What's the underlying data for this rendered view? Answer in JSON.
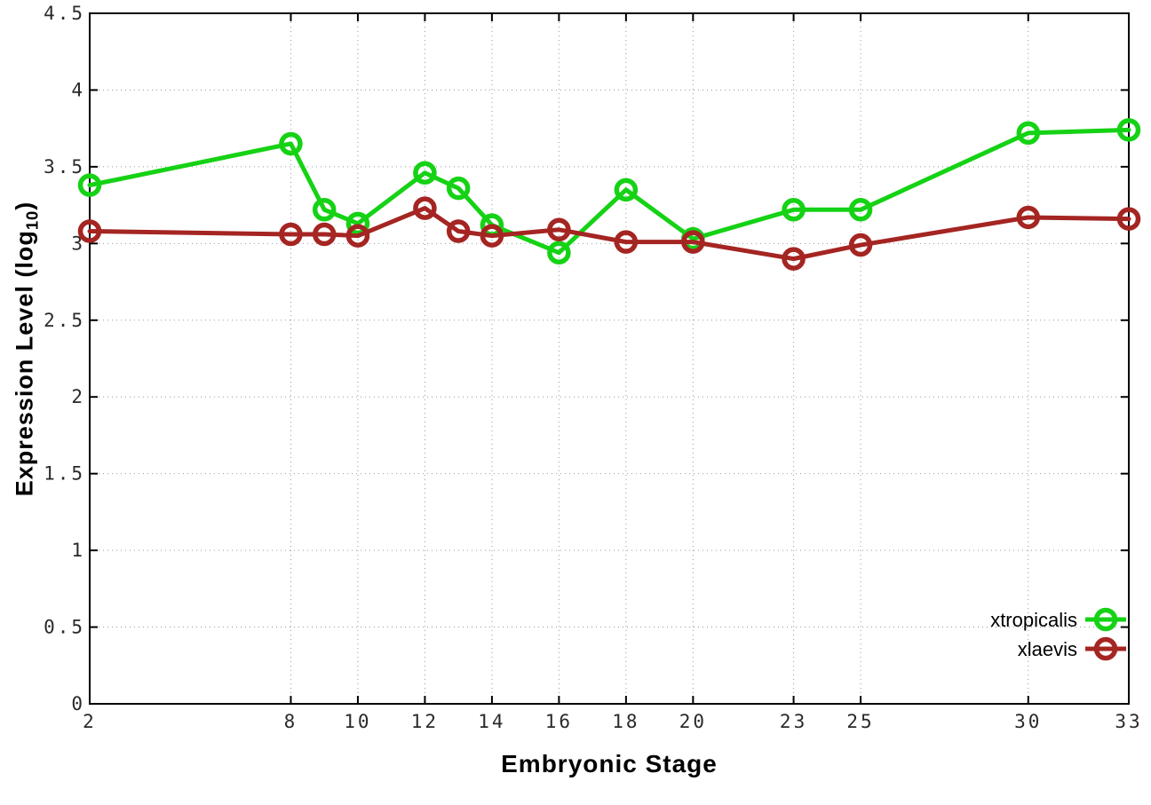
{
  "chart_data": {
    "type": "line",
    "title": "",
    "xlabel": "Embryonic Stage",
    "ylabel_prefix": "Expression Level (log",
    "ylabel_sub": "10",
    "ylabel_suffix": ")",
    "xlim": [
      2,
      33
    ],
    "ylim": [
      0,
      4.5
    ],
    "grid": true,
    "legend_position": "bottom-right",
    "x": [
      2,
      8,
      9,
      10,
      12,
      13,
      14,
      16,
      18,
      20,
      23,
      25,
      30,
      33
    ],
    "x_tick_values": [
      2,
      8,
      10,
      12,
      14,
      16,
      18,
      20,
      23,
      25,
      30,
      33
    ],
    "x_tick_labels": [
      "2",
      "8",
      "10",
      "12",
      "14",
      "16",
      "18",
      "20",
      "23",
      "25",
      "30",
      "33"
    ],
    "y_tick_values": [
      0,
      0.5,
      1,
      1.5,
      2,
      2.5,
      3,
      3.5,
      4,
      4.5
    ],
    "y_tick_labels": [
      "0",
      "0.5",
      "1",
      "1.5",
      "2",
      "2.5",
      "3",
      "3.5",
      "4",
      "4.5"
    ],
    "series": [
      {
        "name": "xtropicalis",
        "color": "#15d215",
        "values": [
          3.38,
          3.65,
          3.22,
          3.13,
          3.46,
          3.36,
          3.12,
          2.94,
          3.35,
          3.03,
          3.22,
          3.22,
          3.72,
          3.74
        ]
      },
      {
        "name": "xlaevis",
        "color": "#a42522",
        "values": [
          3.08,
          3.06,
          3.06,
          3.05,
          3.23,
          3.08,
          3.05,
          3.09,
          3.01,
          3.01,
          2.9,
          2.99,
          3.17,
          3.16
        ]
      }
    ],
    "colors": {
      "axis": "#000000",
      "grid": "#999999",
      "tick_text": "#2a2a2a"
    }
  }
}
